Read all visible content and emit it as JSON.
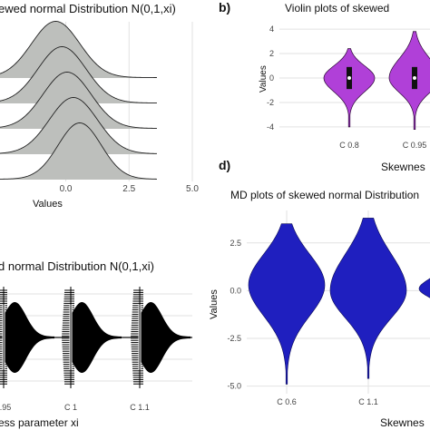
{
  "chart_data": [
    {
      "type": "area",
      "panel": "a",
      "title": "ewed normal Distribution N(0,1,xi)",
      "xlabel": "Values",
      "x_ticks": [
        "0.0",
        "2.5",
        "5.0"
      ],
      "x_tick_values": [
        0,
        2.5,
        5
      ],
      "xlim": [
        -2.6,
        5
      ],
      "series": [
        {
          "mean": -0.4,
          "sd": 0.95
        },
        {
          "mean": -0.15,
          "sd": 0.95
        },
        {
          "mean": 0.05,
          "sd": 0.95
        },
        {
          "mean": 0.3,
          "sd": 0.95
        },
        {
          "mean": 0.55,
          "sd": 0.85
        }
      ],
      "fill_color": "#bdbfbc",
      "grid": true
    },
    {
      "type": "violin",
      "panel": "b",
      "panel_label": "b)",
      "title": "Violin plots of skewed",
      "xlabel": "Skewnes",
      "ylabel": "Values",
      "y_ticks": [
        "4",
        "2",
        "0",
        "-2",
        "-4"
      ],
      "y_tick_values": [
        4,
        2,
        0,
        -2,
        -4
      ],
      "ylim": [
        -4.6,
        4.6
      ],
      "categories": [
        "C 0.8",
        "C 0.95"
      ],
      "violins": [
        {
          "min": -4.0,
          "max": 2.4,
          "median": 0.0
        },
        {
          "min": -4.2,
          "max": 3.8,
          "median": 0.0
        }
      ],
      "fill_color": "#b040d8",
      "grid": true
    },
    {
      "type": "md-plot",
      "panel": "c",
      "title": "d normal Distribution N(0,1,xi)",
      "xlabel": "ess parameter xi",
      "categories": [
        ".95",
        "C 1",
        "C 1.1"
      ],
      "fill_color": "#000000",
      "grid": true
    },
    {
      "type": "violin",
      "panel": "d",
      "panel_label": "d)",
      "title": "MD plots of skewed normal Distribution",
      "xlabel": "Skewnes",
      "ylabel": "Values",
      "y_ticks": [
        "2.5",
        "0.0",
        "-2.5",
        "-5.0"
      ],
      "y_tick_values": [
        2.5,
        0,
        -2.5,
        -5
      ],
      "ylim": [
        -5.4,
        4.2
      ],
      "categories": [
        "C 0.6",
        "C 1.1"
      ],
      "violins": [
        {
          "min": -4.9,
          "max": 3.5,
          "center": 0.3
        },
        {
          "min": -4.6,
          "max": 3.8,
          "center": 0.0
        }
      ],
      "fill_color": "#1f1fbf",
      "grid": true
    }
  ]
}
